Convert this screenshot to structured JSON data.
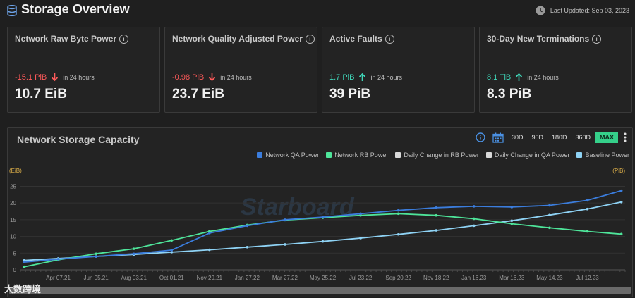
{
  "header": {
    "title": "Storage Overview",
    "last_updated": "Last Updated: Sep 03, 2023"
  },
  "cards": [
    {
      "title": "Network Raw Byte Power",
      "delta": "-15.1 PiB",
      "direction": "down",
      "period": "in 24 hours",
      "value": "10.7 EiB"
    },
    {
      "title": "Network Quality Adjusted Power",
      "delta": "-0.98 PiB",
      "direction": "down",
      "period": "in 24 hours",
      "value": "23.7 EiB"
    },
    {
      "title": "Active Faults",
      "delta": "1.7 PiB",
      "direction": "up",
      "period": "in 24 hours",
      "value": "39 PiB"
    },
    {
      "title": "30-Day New Terminations",
      "delta": "8.1 TiB",
      "direction": "up",
      "period": "in 24 hours",
      "value": "8.3 PiB"
    }
  ],
  "chart_panel": {
    "title": "Network Storage Capacity",
    "ranges": [
      "30D",
      "90D",
      "180D",
      "360D",
      "MAX"
    ],
    "active_range": "MAX",
    "unit_left": "(EiB)",
    "unit_right": "(PiB)",
    "watermark": "Starboard",
    "corner_logo": "大数跨境"
  },
  "colors": {
    "up": "#3fd6b8",
    "down": "#ff5a5a",
    "qa": "#3b7ddd",
    "rb": "#4ee59a",
    "baseline": "#8fd3f5",
    "daily_rb": "#d9d9d9",
    "daily_qa": "#d9d9d9"
  },
  "chart_data": {
    "type": "line",
    "x_ticks": [
      "Apr 07,21",
      "Jun 05,21",
      "Aug 03,21",
      "Oct 01,21",
      "Nov 29,21",
      "Jan 27,22",
      "Mar 27,22",
      "May 25,22",
      "Jul 23,22",
      "Sep 20,22",
      "Nov 18,22",
      "Jan 16,23",
      "Mar 16,23",
      "May 14,23",
      "Jul 12,23"
    ],
    "y_ticks": [
      0,
      5,
      10,
      15,
      20,
      25
    ],
    "ylim": [
      0,
      27
    ],
    "legend_position": "top-right",
    "grid": true,
    "series": [
      {
        "name": "Network QA Power",
        "color": "#3b7ddd",
        "x": [
          -0.9,
          0,
          1,
          2,
          3,
          4,
          5,
          6,
          7,
          8,
          9,
          10,
          11,
          12,
          13,
          14,
          14.9
        ],
        "y": [
          2.3,
          3.2,
          4.0,
          4.8,
          5.9,
          11.0,
          13.2,
          15.0,
          15.8,
          16.8,
          17.8,
          18.6,
          19.0,
          18.8,
          19.3,
          20.8,
          23.7
        ]
      },
      {
        "name": "Network RB Power",
        "color": "#4ee59a",
        "x": [
          -0.9,
          0,
          1,
          2,
          3,
          4,
          5,
          6,
          7,
          8,
          9,
          10,
          11,
          12,
          13,
          14,
          14.9
        ],
        "y": [
          0.9,
          3.0,
          4.8,
          6.3,
          8.8,
          11.5,
          13.4,
          14.9,
          15.6,
          16.3,
          16.8,
          16.3,
          15.3,
          13.8,
          12.6,
          11.5,
          10.7
        ]
      },
      {
        "name": "Daily Change in RB Power",
        "color": "#d9d9d9",
        "x": [],
        "y": []
      },
      {
        "name": "Daily Change in QA Power",
        "color": "#d9d9d9",
        "x": [],
        "y": []
      },
      {
        "name": "Baseline Power",
        "color": "#8fd3f5",
        "x": [
          -0.9,
          0,
          1,
          2,
          3,
          4,
          5,
          6,
          7,
          8,
          9,
          10,
          11,
          12,
          13,
          14,
          14.9
        ],
        "y": [
          2.8,
          3.4,
          4.0,
          4.6,
          5.3,
          6.0,
          6.8,
          7.6,
          8.5,
          9.5,
          10.6,
          11.8,
          13.2,
          14.7,
          16.4,
          18.2,
          20.3
        ]
      }
    ]
  }
}
